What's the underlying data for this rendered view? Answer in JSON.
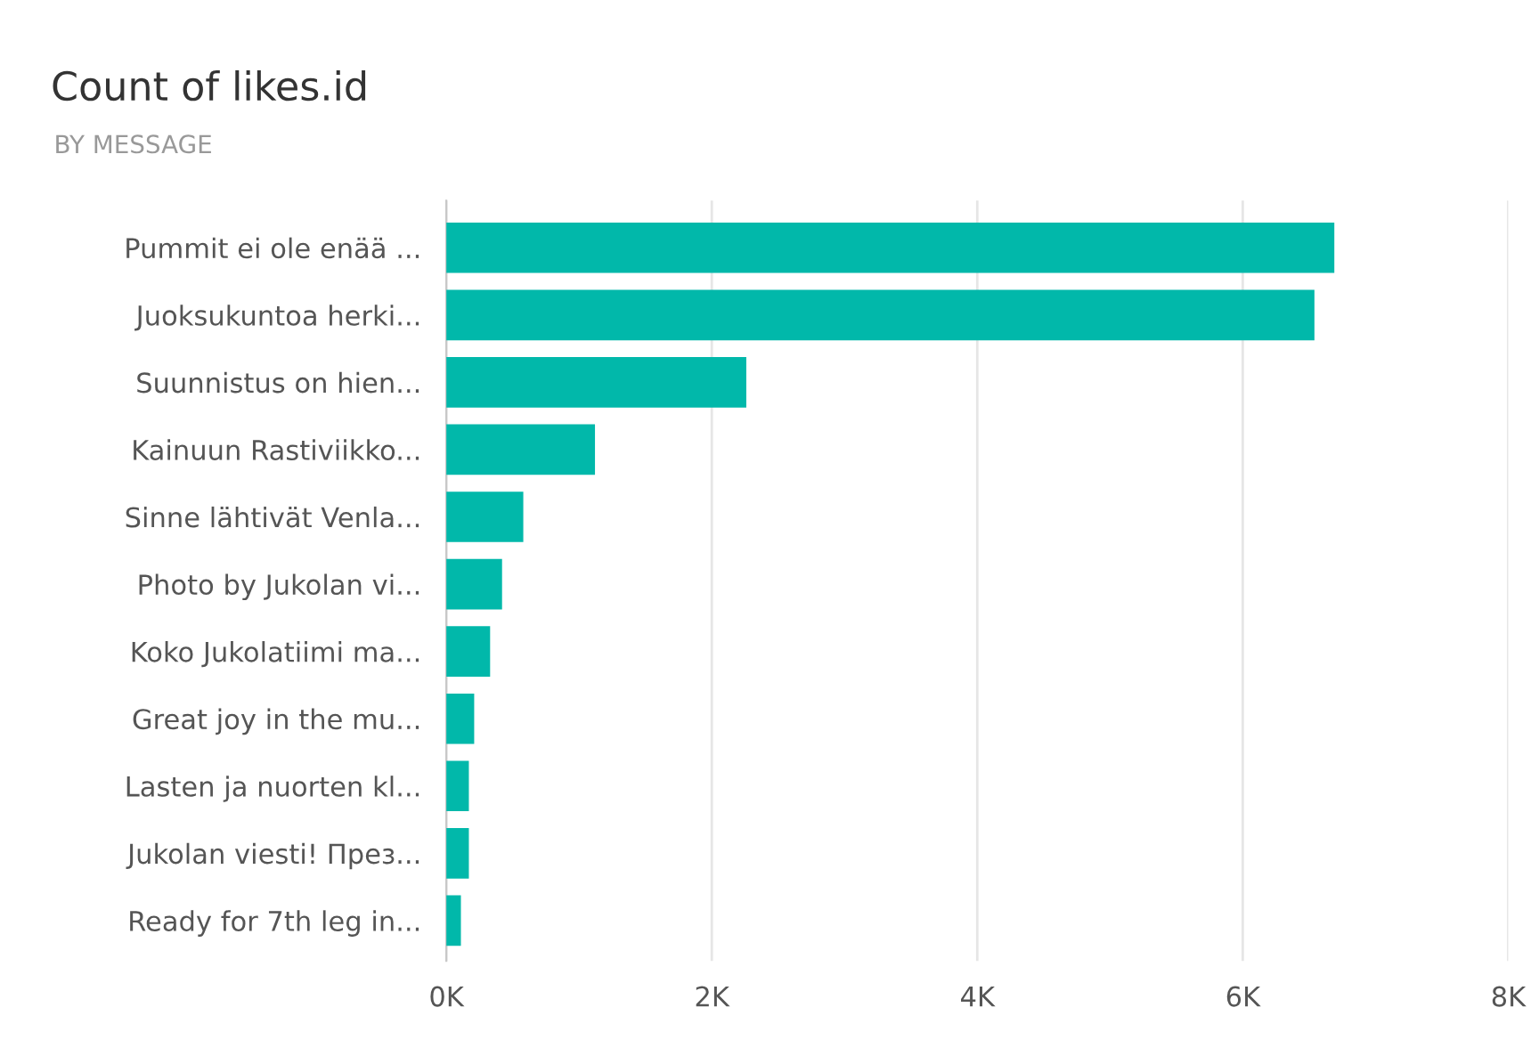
{
  "chart_data": {
    "type": "bar",
    "orientation": "horizontal",
    "title": "Count of likes.id",
    "subtitle": "BY MESSAGE",
    "categories": [
      "Pummit ei ole enää ...",
      "Juoksukuntoa herki...",
      "Suunnistus on hien...",
      "Kainuun Rastiviikko...",
      "Sinne lähtivät Venla...",
      "Photo by Jukolan vi...",
      "Koko Jukolatiimi ma...",
      "Great joy in the mu...",
      "Lasten ja nuorten kl...",
      "Jukolan viesti! През...",
      "Ready for 7th leg in..."
    ],
    "values": [
      6690,
      6540,
      2260,
      1120,
      580,
      420,
      330,
      210,
      170,
      170,
      110
    ],
    "color": "#01b8aa",
    "xlim": [
      0,
      8000
    ],
    "xticks": [
      {
        "value": 0,
        "label": "0K"
      },
      {
        "value": 2000,
        "label": "2K"
      },
      {
        "value": 4000,
        "label": "4K"
      },
      {
        "value": 6000,
        "label": "6K"
      },
      {
        "value": 8000,
        "label": "8K"
      }
    ],
    "grid": "x"
  }
}
